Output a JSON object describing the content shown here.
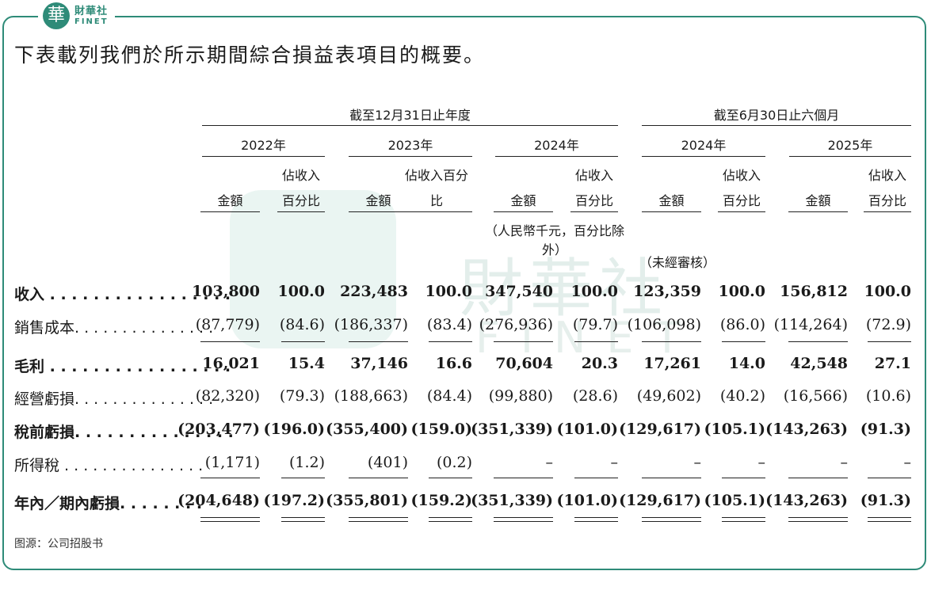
{
  "brand": {
    "seal_char": "華",
    "name_cn": "財華社",
    "name_en": "FINET"
  },
  "watermark": {
    "cn": "財華社",
    "en": "FINET"
  },
  "intro": "下表載列我們於所示期間綜合損益表項目的概要。",
  "headers": {
    "group1": "截至12月31日止年度",
    "group2": "截至6月30日止六個月",
    "years": [
      "2022年",
      "2023年",
      "2024年",
      "2024年",
      "2025年"
    ],
    "amount": "金額",
    "pct_two_line": [
      "佔收入",
      "百分比"
    ],
    "pct_2023": [
      "佔收入百分",
      "比"
    ],
    "unit_note": "（人民幣千元，百分比除外）",
    "unaudited": "（未經審核）"
  },
  "rows": [
    {
      "label": "收入 . . . . . . . . . . . . . . . . .",
      "bold": true,
      "values": [
        "103,800",
        "100.0",
        "223,483",
        "100.0",
        "347,540",
        "100.0",
        "123,359",
        "100.0",
        "156,812",
        "100.0"
      ]
    },
    {
      "label": "銷售成本. . . . . . . . . . . . . . .",
      "bold": false,
      "values": [
        "(87,779)",
        "(84.6)",
        "(186,337)",
        "(83.4)",
        "(276,936)",
        "(79.7)",
        "(106,098)",
        "(86.0)",
        "(114,264)",
        "(72.9)"
      ]
    },
    {
      "label": "毛利 . . . . . . . . . . . . . . . . .",
      "bold": true,
      "values": [
        "16,021",
        "15.4",
        "37,146",
        "16.6",
        "70,604",
        "20.3",
        "17,261",
        "14.0",
        "42,548",
        "27.1"
      ]
    },
    {
      "label": "經營虧損. . . . . . . . . . . . . . .",
      "bold": false,
      "values": [
        "(82,320)",
        "(79.3)",
        "(188,663)",
        "(84.4)",
        "(99,880)",
        "(28.6)",
        "(49,602)",
        "(40.2)",
        "(16,566)",
        "(10.6)"
      ]
    },
    {
      "label": "稅前虧損. . . . . . . . . . . . . . .",
      "bold": true,
      "values": [
        "(203,477)",
        "(196.0)",
        "(355,400)",
        "(159.0)",
        "(351,339)",
        "(101.0)",
        "(129,617)",
        "(105.1)",
        "(143,263)",
        "(91.3)"
      ]
    },
    {
      "label": "所得稅 . . . . . . . . . . . . . . .",
      "bold": false,
      "values": [
        "(1,171)",
        "(1.2)",
        "(401)",
        "(0.2)",
        "–",
        "–",
        "–",
        "–",
        "–",
        "–"
      ]
    },
    {
      "label": "年內／期內虧損. . . . . . . .",
      "bold": true,
      "values": [
        "(204,648)",
        "(197.2)",
        "(355,801)",
        "(159.2)",
        "(351,339)",
        "(101.0)",
        "(129,617)",
        "(105.1)",
        "(143,263)",
        "(91.3)"
      ]
    }
  ],
  "source": "图源：公司招股书"
}
